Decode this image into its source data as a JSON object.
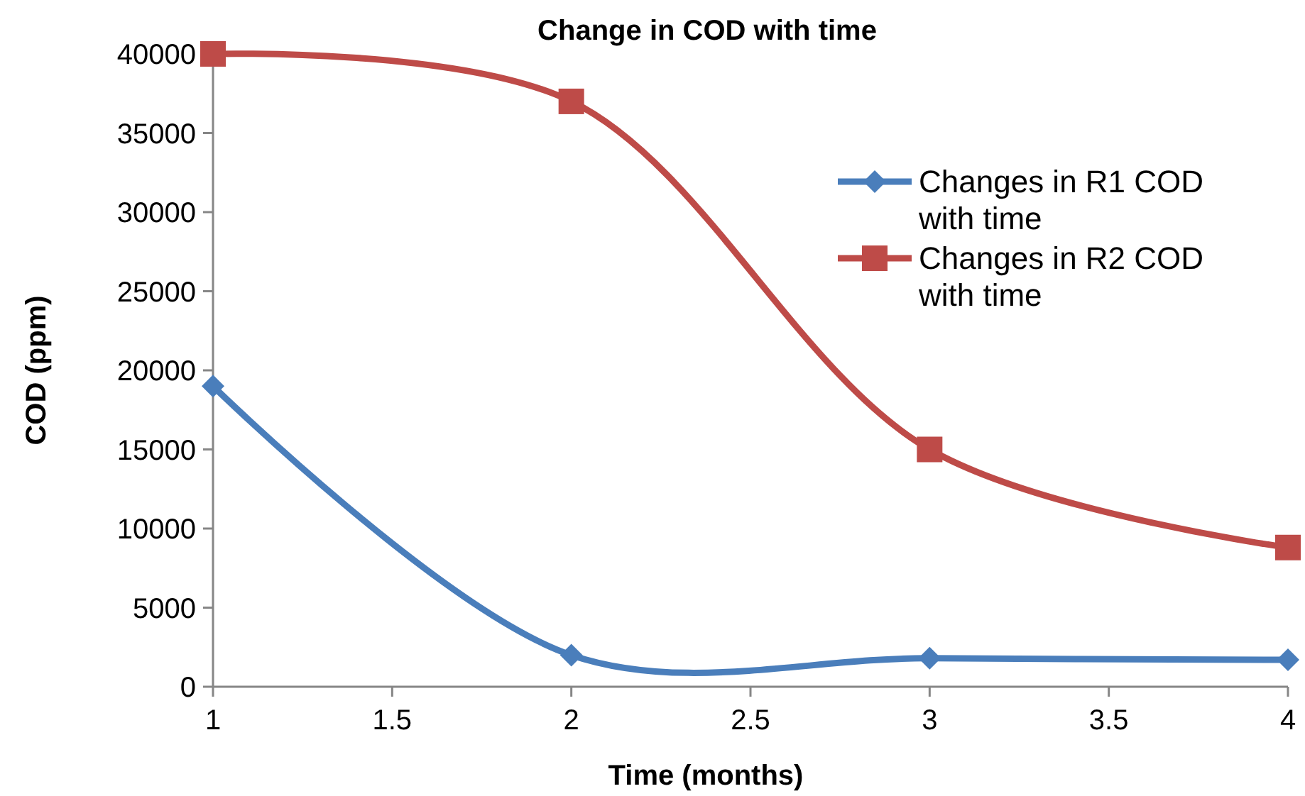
{
  "chart_data": {
    "type": "line",
    "title": "Change in COD with time",
    "xlabel": "Time (months)",
    "ylabel": "COD (ppm)",
    "x": [
      1,
      2,
      3,
      4
    ],
    "series": [
      {
        "name": "Changes in R1 COD with time",
        "color": "#4a7ebb",
        "marker": "diamond",
        "values": [
          19000,
          2000,
          1800,
          1700
        ]
      },
      {
        "name": "Changes in R2 COD with time",
        "color": "#be4b48",
        "marker": "square",
        "values": [
          40000,
          37000,
          15000,
          8800
        ]
      }
    ],
    "xlim": [
      1,
      4
    ],
    "xticks": [
      1,
      1.5,
      2,
      2.5,
      3,
      3.5,
      4
    ],
    "ylim": [
      0,
      40000
    ],
    "yticks": [
      0,
      5000,
      10000,
      15000,
      20000,
      25000,
      30000,
      35000,
      40000
    ],
    "grid": false,
    "legend": "right",
    "line_style": "solid"
  }
}
